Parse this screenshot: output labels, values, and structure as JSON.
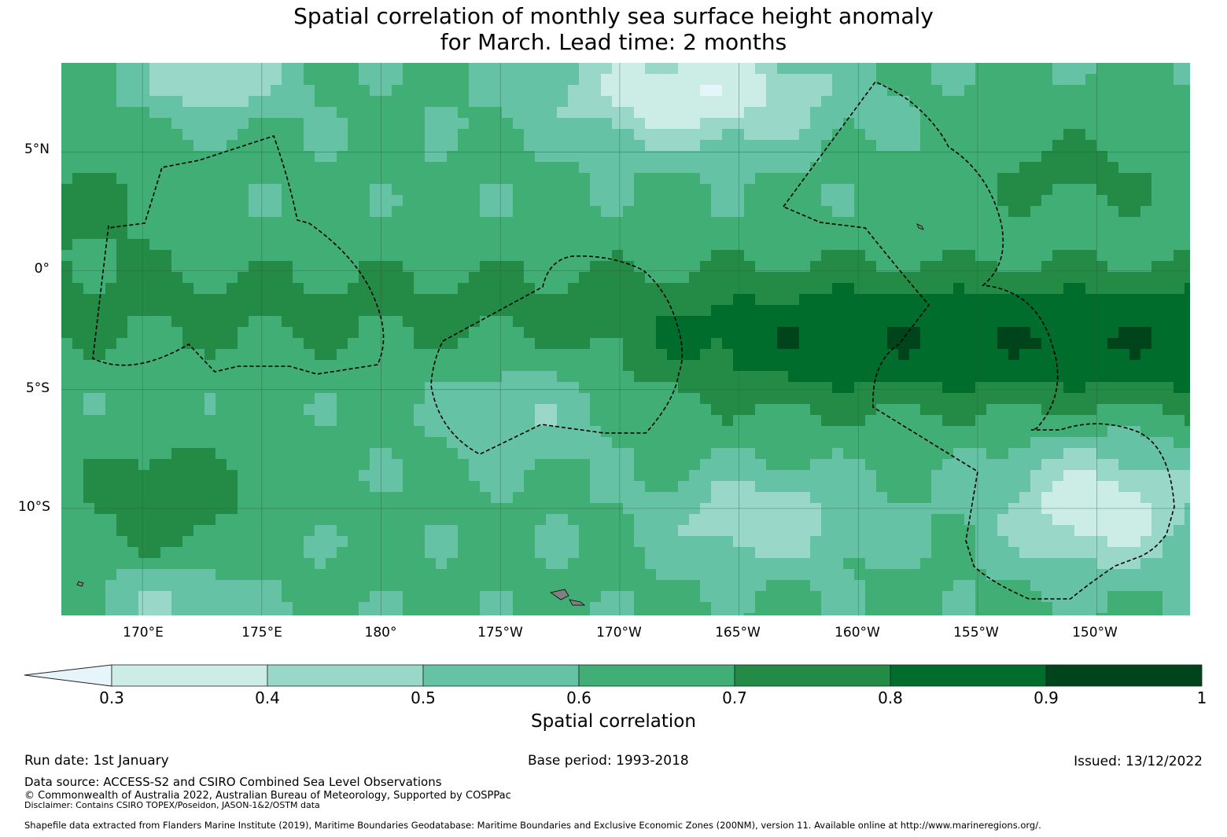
{
  "title": {
    "line1": "Spatial correlation of monthly sea surface height anomaly",
    "line2": "for March. Lead time: 2 months"
  },
  "map": {
    "lat_ticks": [
      "5°N",
      "0°",
      "5°S",
      "10°S"
    ],
    "lon_ticks": [
      "170°E",
      "175°E",
      "180°",
      "175°W",
      "170°W",
      "165°W",
      "160°W",
      "155°W",
      "150°W"
    ],
    "lat_range": [
      -14.5,
      8.75
    ],
    "lon_range": [
      166.6,
      213.9
    ],
    "lat_tick_values": [
      5,
      0,
      -5,
      -10
    ],
    "lon_tick_values": [
      170,
      175,
      180,
      185,
      190,
      195,
      200,
      205,
      210
    ],
    "field_description": "Spatial correlation field with highest values (0.8-1.0) in an equatorial band from 2°S to 6°S east of 165°W, lower values (below 0.3) near 5°N-8°N around 170°W and south-east near 10°S 150°W"
  },
  "colorbar": {
    "label": "Spatial correlation",
    "levels": [
      0.3,
      0.4,
      0.5,
      0.6,
      0.7,
      0.8,
      0.9,
      1
    ],
    "tick_labels": [
      "0.3",
      "0.4",
      "0.5",
      "0.6",
      "0.7",
      "0.8",
      "0.9",
      "1"
    ],
    "colors": [
      "#e5f5f9",
      "#ccece6",
      "#99d8c9",
      "#66c2a4",
      "#41ae76",
      "#238b45",
      "#006d2c",
      "#00441b"
    ]
  },
  "footer": {
    "run_date": "Run date: 1st January",
    "base_period": "Base period: 1993-2018",
    "issued": "Issued: 13/12/2022",
    "data_source": "Data source: ACCESS-S2 and CSIRO Combined Sea Level Observations",
    "copyright": "© Commonwealth of Australia 2022, Australian Bureau of Meteorology, Supported by COSPPac",
    "disclaimer": "Disclaimer: Contains CSIRO TOPEX/Poseidon, JASON-1&2/OSTM data",
    "shapefile": "Shapefile data extracted from Flanders Marine Institute (2019), Maritime Boundaries Geodatabase: Maritime Boundaries and Exclusive Economic Zones (200NM), version 11. Available online at http://www.marineregions.org/."
  }
}
